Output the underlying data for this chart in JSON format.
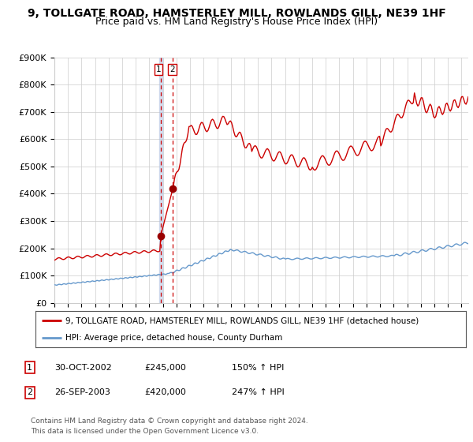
{
  "title": "9, TOLLGATE ROAD, HAMSTERLEY MILL, ROWLANDS GILL, NE39 1HF",
  "subtitle": "Price paid vs. HM Land Registry's House Price Index (HPI)",
  "ylabel_ticks": [
    "£0",
    "£100K",
    "£200K",
    "£300K",
    "£400K",
    "£500K",
    "£600K",
    "£700K",
    "£800K",
    "£900K"
  ],
  "ylim": [
    0,
    900000
  ],
  "xlim_start": 1995.0,
  "xlim_end": 2025.5,
  "sale1_date": 2002.83,
  "sale1_price": 245000,
  "sale2_date": 2003.73,
  "sale2_price": 420000,
  "hpi_line_color": "#6699cc",
  "price_line_color": "#cc0000",
  "sale_dot_color": "#990000",
  "vline1_color": "#aabbdd",
  "vline2_color": "#cc0000",
  "legend_label_red": "9, TOLLGATE ROAD, HAMSTERLEY MILL, ROWLANDS GILL, NE39 1HF (detached house)",
  "legend_label_blue": "HPI: Average price, detached house, County Durham",
  "table_rows": [
    [
      "1",
      "30-OCT-2002",
      "£245,000",
      "150% ↑ HPI"
    ],
    [
      "2",
      "26-SEP-2003",
      "£420,000",
      "247% ↑ HPI"
    ]
  ],
  "footnote": "Contains HM Land Registry data © Crown copyright and database right 2024.\nThis data is licensed under the Open Government Licence v3.0.",
  "background_color": "#ffffff",
  "grid_color": "#cccccc",
  "title_fontsize": 10,
  "subtitle_fontsize": 9
}
